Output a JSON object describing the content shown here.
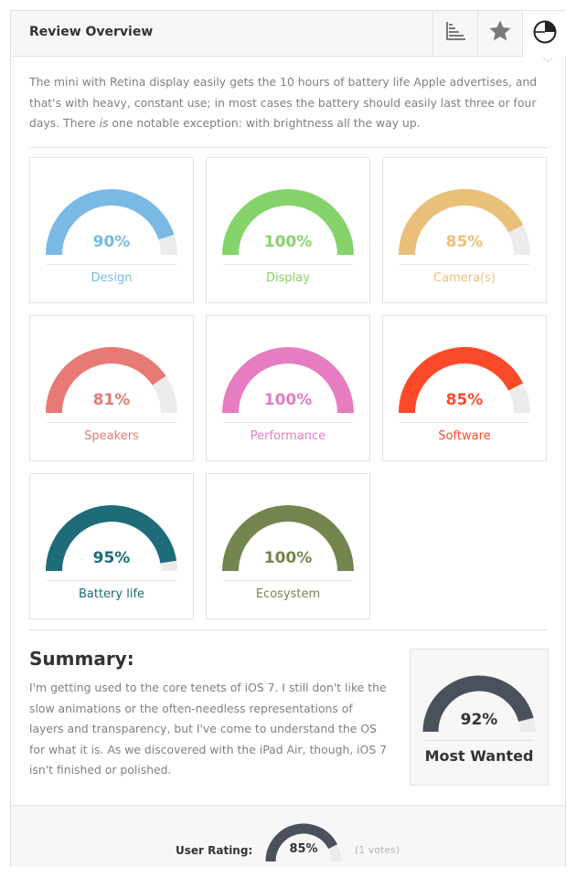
{
  "header": {
    "title": "Review Overview",
    "tabs": [
      {
        "icon": "bar-chart-icon",
        "active": false
      },
      {
        "icon": "star-icon",
        "active": false
      },
      {
        "icon": "pie-chart-icon",
        "active": true
      }
    ]
  },
  "intro": {
    "before": "The mini with Retina display easily gets the 10 hours of battery life Apple advertises, and that's with heavy, constant use; in most cases the battery should easily last three or four days. There ",
    "emphasis": "is",
    "after": " one notable exception: with brightness all the way up."
  },
  "ratings": [
    {
      "label": "Design",
      "percent": 90,
      "percent_text": "90%",
      "color": "#7ab9e4"
    },
    {
      "label": "Display",
      "percent": 100,
      "percent_text": "100%",
      "color": "#86d36b"
    },
    {
      "label": "Camera(s)",
      "percent": 85,
      "percent_text": "85%",
      "color": "#e8c07a"
    },
    {
      "label": "Speakers",
      "percent": 81,
      "percent_text": "81%",
      "color": "#e87a76"
    },
    {
      "label": "Performance",
      "percent": 100,
      "percent_text": "100%",
      "color": "#e57dc0"
    },
    {
      "label": "Software",
      "percent": 85,
      "percent_text": "85%",
      "color": "#fb4a2a"
    },
    {
      "label": "Battery life",
      "percent": 95,
      "percent_text": "95%",
      "color": "#1e6b7a"
    },
    {
      "label": "Ecosystem",
      "percent": 100,
      "percent_text": "100%",
      "color": "#758550"
    }
  ],
  "colors": {
    "track": "#ececec",
    "final": "#4a505c"
  },
  "summary": {
    "title": "Summary:",
    "text": "I'm getting used to the core tenets of iOS 7. I still don't like the slow animations or the often-needless representations of layers and transparency, but I've come to understand the OS for what it is. As we discovered with the iPad Air, though, iOS 7 isn't finished or polished."
  },
  "final_score": {
    "percent": 92,
    "percent_text": "92%",
    "label": "Most Wanted"
  },
  "user_rating": {
    "label": "User Rating:",
    "percent": 85,
    "percent_text": "85%",
    "votes": "(1 votes)"
  }
}
